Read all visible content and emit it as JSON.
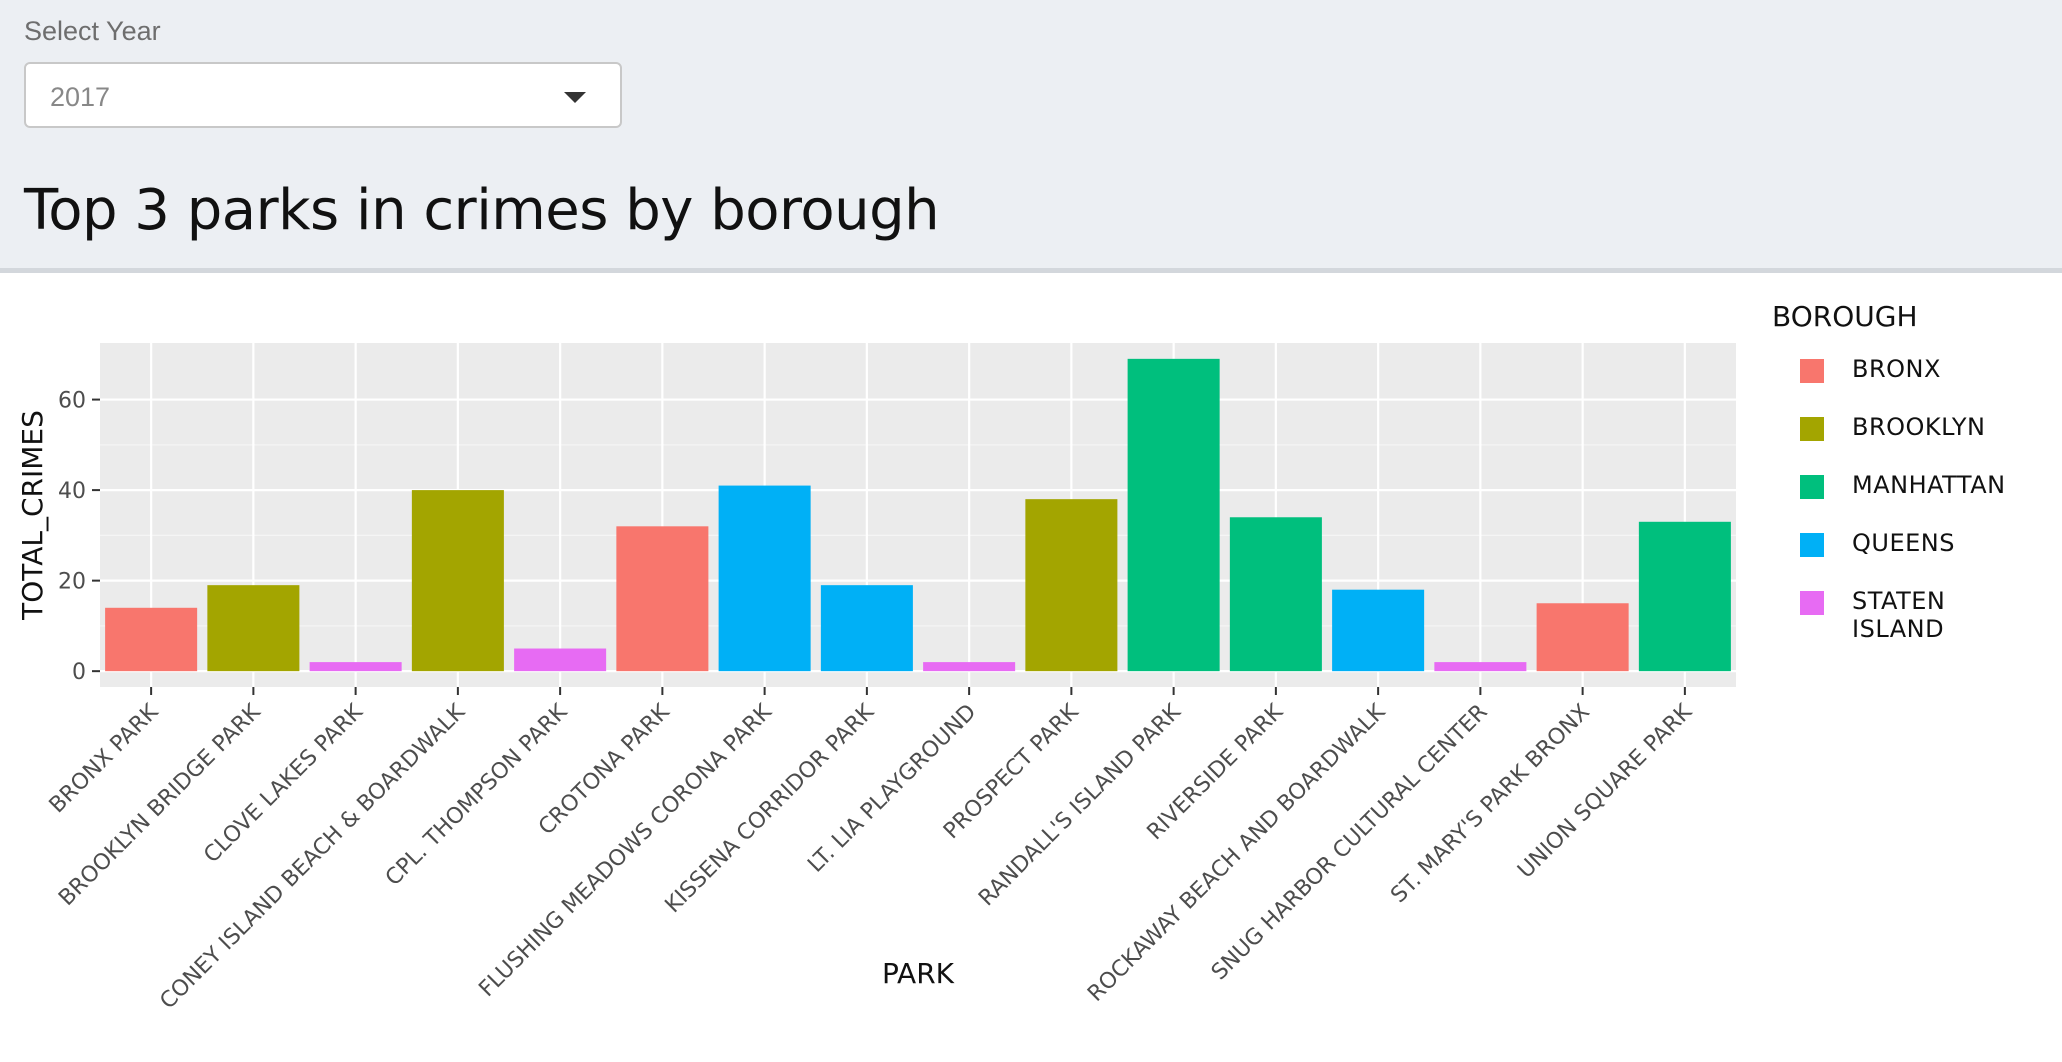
{
  "filter": {
    "label": "Select Year",
    "selected": "2017",
    "icon": "chevron-down-icon"
  },
  "page_title": "Top 3 parks in crimes by borough",
  "chart_data": {
    "type": "bar",
    "xlabel": "PARK",
    "ylabel": "TOTAL_CRIMES",
    "ylim": [
      -3.5,
      72.5
    ],
    "yticks": [
      0,
      20,
      40,
      60
    ],
    "grid": true,
    "legend_title": "BOROUGH",
    "legend_position": "right",
    "categories": [
      "BRONX PARK",
      "BROOKLYN BRIDGE PARK",
      "CLOVE LAKES PARK",
      "CONEY ISLAND BEACH & BOARDWALK",
      "CPL. THOMPSON PARK",
      "CROTONA PARK",
      "FLUSHING MEADOWS CORONA PARK",
      "KISSENA CORRIDOR PARK",
      "LT. LIA PLAYGROUND",
      "PROSPECT PARK",
      "RANDALL'S ISLAND PARK",
      "RIVERSIDE PARK",
      "ROCKAWAY BEACH AND BOARDWALK",
      "SNUG HARBOR CULTURAL CENTER",
      "ST. MARY'S PARK BRONX",
      "UNION SQUARE PARK"
    ],
    "values": [
      14,
      19,
      2,
      40,
      5,
      32,
      41,
      19,
      2,
      38,
      69,
      34,
      18,
      2,
      15,
      33
    ],
    "boroughs": [
      "BRONX",
      "BROOKLYN",
      "STATEN ISLAND",
      "BROOKLYN",
      "STATEN ISLAND",
      "BRONX",
      "QUEENS",
      "QUEENS",
      "STATEN ISLAND",
      "BROOKLYN",
      "MANHATTAN",
      "MANHATTAN",
      "QUEENS",
      "STATEN ISLAND",
      "BRONX",
      "MANHATTAN"
    ],
    "legend": [
      {
        "name": "BRONX",
        "color": "#F8766D"
      },
      {
        "name": "BROOKLYN",
        "color": "#A3A500"
      },
      {
        "name": "MANHATTAN",
        "color": "#00BF7D"
      },
      {
        "name": "QUEENS",
        "color": "#00B0F6"
      },
      {
        "name": "STATEN ISLAND",
        "color": "#E76BF3"
      }
    ]
  }
}
